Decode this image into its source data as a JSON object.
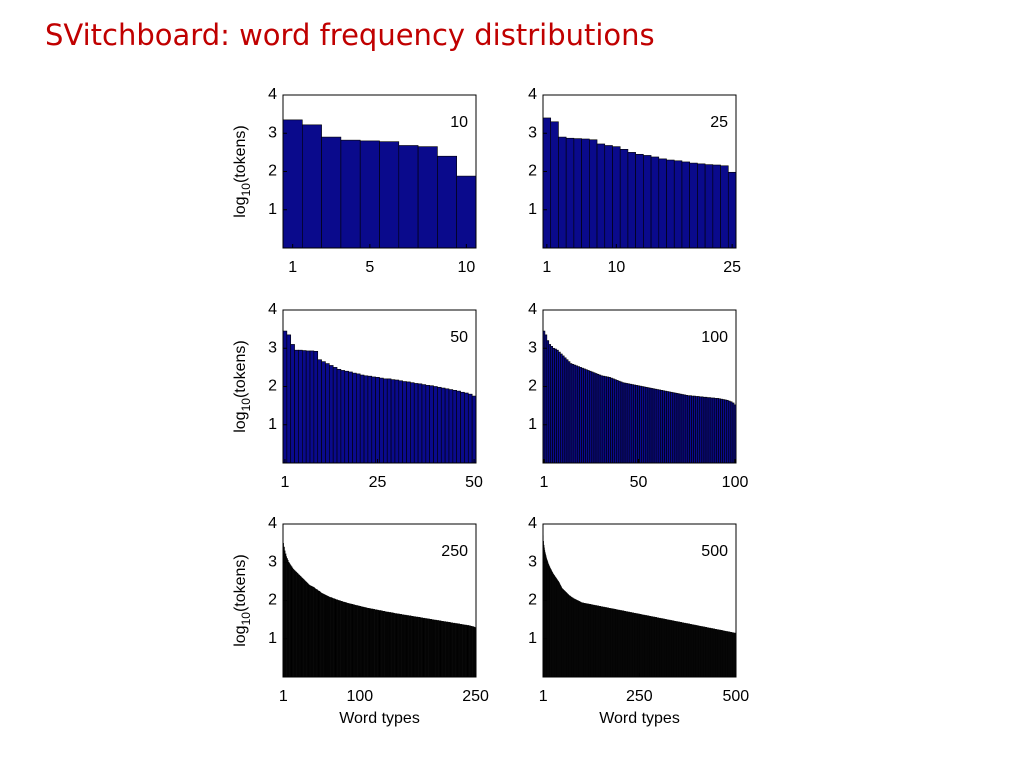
{
  "title": "SVitchboard: word frequency distributions",
  "chart_data": [
    {
      "type": "bar",
      "label": "10",
      "ylabel": {
        "base": "log",
        "sub": "10",
        "rest": "(tokens)"
      },
      "color": "#0a0a8c",
      "edgecolor": "#000000",
      "xlim": [
        0.5,
        10.5
      ],
      "xticks": [
        1,
        5,
        10
      ],
      "ylim": [
        0,
        4
      ],
      "yticks": [
        1,
        2,
        3,
        4
      ],
      "values": [
        3.35,
        3.22,
        2.9,
        2.82,
        2.8,
        2.78,
        2.68,
        2.65,
        2.4,
        1.88
      ]
    },
    {
      "type": "bar",
      "label": "25",
      "color": "#0a0a8c",
      "edgecolor": "#000000",
      "xlim": [
        0.5,
        25.5
      ],
      "xticks": [
        1,
        10,
        25
      ],
      "ylim": [
        0,
        4
      ],
      "yticks": [
        1,
        2,
        3,
        4
      ],
      "values": [
        3.4,
        3.3,
        2.9,
        2.87,
        2.86,
        2.85,
        2.83,
        2.72,
        2.68,
        2.65,
        2.58,
        2.5,
        2.45,
        2.42,
        2.38,
        2.33,
        2.3,
        2.28,
        2.25,
        2.22,
        2.2,
        2.18,
        2.17,
        2.15,
        1.98
      ]
    },
    {
      "type": "bar",
      "label": "50",
      "ylabel": {
        "base": "log",
        "sub": "10",
        "rest": "(tokens)"
      },
      "color": "#0a0a8c",
      "edgecolor": "#000000",
      "xlim": [
        0.5,
        50.5
      ],
      "xticks": [
        1,
        25,
        50
      ],
      "ylim": [
        0,
        4
      ],
      "yticks": [
        1,
        2,
        3,
        4
      ],
      "values": [
        3.45,
        3.35,
        3.1,
        2.95,
        2.95,
        2.94,
        2.93,
        2.93,
        2.92,
        2.7,
        2.65,
        2.6,
        2.55,
        2.5,
        2.45,
        2.42,
        2.4,
        2.38,
        2.35,
        2.33,
        2.3,
        2.28,
        2.27,
        2.25,
        2.24,
        2.22,
        2.2,
        2.2,
        2.18,
        2.17,
        2.15,
        2.13,
        2.12,
        2.1,
        2.08,
        2.07,
        2.05,
        2.03,
        2.02,
        2.0,
        1.98,
        1.96,
        1.94,
        1.92,
        1.9,
        1.88,
        1.85,
        1.83,
        1.8,
        1.75
      ]
    },
    {
      "type": "bar",
      "label": "100",
      "color": "#0a0a8c",
      "edgecolor": "#000000",
      "xlim": [
        0.5,
        100.5
      ],
      "xticks": [
        1,
        50,
        100
      ],
      "ylim": [
        0,
        4
      ],
      "yticks": [
        1,
        2,
        3,
        4
      ],
      "values": [
        3.45,
        3.35,
        3.2,
        3.1,
        3.05,
        3.0,
        2.98,
        2.95,
        2.9,
        2.85,
        2.8,
        2.75,
        2.7,
        2.65,
        2.6,
        2.58,
        2.56,
        2.54,
        2.52,
        2.5,
        2.48,
        2.46,
        2.44,
        2.42,
        2.4,
        2.38,
        2.36,
        2.34,
        2.32,
        2.3,
        2.28,
        2.27,
        2.26,
        2.25,
        2.24,
        2.22,
        2.2,
        2.18,
        2.16,
        2.14,
        2.12,
        2.1,
        2.09,
        2.08,
        2.07,
        2.06,
        2.05,
        2.04,
        2.03,
        2.02,
        2.01,
        2.0,
        1.99,
        1.98,
        1.97,
        1.96,
        1.95,
        1.94,
        1.93,
        1.92,
        1.91,
        1.9,
        1.89,
        1.88,
        1.87,
        1.86,
        1.85,
        1.84,
        1.83,
        1.82,
        1.81,
        1.8,
        1.79,
        1.78,
        1.77,
        1.76,
        1.76,
        1.75,
        1.75,
        1.74,
        1.74,
        1.73,
        1.73,
        1.72,
        1.72,
        1.71,
        1.71,
        1.7,
        1.7,
        1.69,
        1.69,
        1.68,
        1.67,
        1.66,
        1.65,
        1.64,
        1.62,
        1.6,
        1.57,
        1.52
      ]
    },
    {
      "type": "bar",
      "label": "250",
      "ylabel": {
        "base": "log",
        "sub": "10",
        "rest": "(tokens)"
      },
      "xlabel": "Word types",
      "color": "#000000",
      "xlim": [
        0.5,
        250.5
      ],
      "xticks": [
        1,
        100,
        250
      ],
      "ylim": [
        0,
        4
      ],
      "yticks": [
        1,
        2,
        3,
        4
      ],
      "values": [
        3.5,
        3.4,
        3.3,
        3.22,
        3.15,
        3.1,
        3.05,
        3.0,
        2.97,
        2.94,
        2.91,
        2.88,
        2.85,
        2.82,
        2.8,
        2.78,
        2.76,
        2.74,
        2.72,
        2.7,
        2.68,
        2.66,
        2.64,
        2.62,
        2.6,
        2.58,
        2.56,
        2.54,
        2.52,
        2.5,
        2.48,
        2.46,
        2.44,
        2.42,
        2.4,
        2.39,
        2.38,
        2.37,
        2.36,
        2.35,
        2.34,
        2.32,
        2.3,
        2.29,
        2.28,
        2.26,
        2.25,
        2.24,
        2.22,
        2.2,
        2.19,
        2.18,
        2.17,
        2.16,
        2.15,
        2.14,
        2.13,
        2.12,
        2.11,
        2.1,
        2.09,
        2.08,
        2.08,
        2.07,
        2.06,
        2.05,
        2.05,
        2.04,
        2.03,
        2.02,
        2.02,
        2.01,
        2.0,
        2.0,
        1.99,
        1.98,
        1.98,
        1.97,
        1.96,
        1.96,
        1.95,
        1.95,
        1.94,
        1.93,
        1.93,
        1.92,
        1.92,
        1.91,
        1.91,
        1.9,
        1.9,
        1.89,
        1.89,
        1.88,
        1.88,
        1.87,
        1.87,
        1.86,
        1.86,
        1.85,
        1.85,
        1.84,
        1.84,
        1.83,
        1.83,
        1.82,
        1.82,
        1.81,
        1.81,
        1.8,
        1.8,
        1.8,
        1.79,
        1.79,
        1.78,
        1.78,
        1.78,
        1.77,
        1.77,
        1.76,
        1.76,
        1.76,
        1.75,
        1.75,
        1.74,
        1.74,
        1.74,
        1.73,
        1.73,
        1.72,
        1.72,
        1.72,
        1.71,
        1.71,
        1.7,
        1.7,
        1.7,
        1.69,
        1.69,
        1.69,
        1.68,
        1.68,
        1.68,
        1.67,
        1.67,
        1.66,
        1.66,
        1.66,
        1.65,
        1.65,
        1.65,
        1.64,
        1.64,
        1.64,
        1.63,
        1.63,
        1.63,
        1.62,
        1.62,
        1.62,
        1.61,
        1.61,
        1.61,
        1.6,
        1.6,
        1.6,
        1.59,
        1.59,
        1.59,
        1.58,
        1.58,
        1.58,
        1.57,
        1.57,
        1.57,
        1.56,
        1.56,
        1.56,
        1.55,
        1.55,
        1.55,
        1.54,
        1.54,
        1.54,
        1.53,
        1.53,
        1.53,
        1.52,
        1.52,
        1.52,
        1.51,
        1.51,
        1.51,
        1.5,
        1.5,
        1.5,
        1.49,
        1.49,
        1.49,
        1.48,
        1.48,
        1.48,
        1.47,
        1.47,
        1.47,
        1.46,
        1.46,
        1.46,
        1.45,
        1.45,
        1.45,
        1.44,
        1.44,
        1.44,
        1.43,
        1.43,
        1.43,
        1.42,
        1.42,
        1.42,
        1.41,
        1.41,
        1.41,
        1.4,
        1.4,
        1.4,
        1.39,
        1.39,
        1.39,
        1.38,
        1.38,
        1.38,
        1.37,
        1.37,
        1.37,
        1.36,
        1.36,
        1.36,
        1.35,
        1.35,
        1.35,
        1.34,
        1.34,
        1.33,
        1.33,
        1.32,
        1.32,
        1.31,
        1.3,
        1.28
      ]
    },
    {
      "type": "bar",
      "label": "500",
      "xlabel": "Word types",
      "color": "#000000",
      "xlim": [
        0.5,
        500.5
      ],
      "xticks": [
        1,
        250,
        500
      ],
      "ylim": [
        0,
        4
      ],
      "yticks": [
        1,
        2,
        3,
        4
      ],
      "values": [
        3.7,
        3.55,
        3.45,
        3.38,
        3.32,
        3.27,
        3.22,
        3.18,
        3.14,
        3.1,
        3.07,
        3.04,
        3.01,
        2.98,
        2.95,
        2.93,
        2.9,
        2.88,
        2.86,
        2.84,
        2.82,
        2.8,
        2.78,
        2.76,
        2.74,
        2.72,
        2.7,
        2.69,
        2.67,
        2.66,
        2.64,
        2.63,
        2.61,
        2.6,
        2.58,
        2.57,
        2.55,
        2.54,
        2.52,
        2.51,
        2.5,
        2.48,
        2.46,
        2.44,
        2.42,
        2.4,
        2.38,
        2.36,
        2.34,
        2.32,
        2.31,
        2.3,
        2.29,
        2.28,
        2.27,
        2.26,
        2.25,
        2.24,
        2.23,
        2.22,
        2.21,
        2.2,
        2.19,
        2.18,
        2.17,
        2.16,
        2.15,
        2.14,
        2.13,
        2.12,
        2.12,
        2.11,
        2.1,
        2.09,
        2.09,
        2.08,
        2.07,
        2.07,
        2.06,
        2.05,
        2.05,
        2.04,
        2.04,
        2.03,
        2.03,
        2.02,
        2.02,
        2.01,
        2.01,
        2.0,
        2.0,
        1.99,
        1.99,
        1.98,
        1.98,
        1.97,
        1.97,
        1.96,
        1.96,
        1.95,
        1.94,
        1.94,
        1.94,
        1.94,
        1.94,
        1.93,
        1.93,
        1.93,
        1.93,
        1.93,
        1.92,
        1.92,
        1.92,
        1.92,
        1.92,
        1.91,
        1.91,
        1.91,
        1.91,
        1.91,
        1.9,
        1.9,
        1.9,
        1.9,
        1.9,
        1.89,
        1.89,
        1.89,
        1.89,
        1.89,
        1.88,
        1.88,
        1.88,
        1.88,
        1.88,
        1.87,
        1.87,
        1.87,
        1.87,
        1.87,
        1.86,
        1.86,
        1.86,
        1.86,
        1.86,
        1.85,
        1.85,
        1.85,
        1.85,
        1.85,
        1.84,
        1.84,
        1.84,
        1.84,
        1.84,
        1.83,
        1.83,
        1.83,
        1.83,
        1.83,
        1.82,
        1.82,
        1.82,
        1.82,
        1.82,
        1.81,
        1.81,
        1.81,
        1.81,
        1.81,
        1.8,
        1.8,
        1.8,
        1.8,
        1.8,
        1.79,
        1.79,
        1.79,
        1.79,
        1.79,
        1.78,
        1.78,
        1.78,
        1.78,
        1.78,
        1.77,
        1.77,
        1.77,
        1.77,
        1.77,
        1.76,
        1.76,
        1.76,
        1.76,
        1.76,
        1.75,
        1.75,
        1.75,
        1.75,
        1.75,
        1.74,
        1.74,
        1.74,
        1.74,
        1.74,
        1.73,
        1.73,
        1.73,
        1.73,
        1.73,
        1.72,
        1.72,
        1.72,
        1.72,
        1.72,
        1.71,
        1.71,
        1.71,
        1.71,
        1.71,
        1.7,
        1.7,
        1.7,
        1.7,
        1.7,
        1.69,
        1.69,
        1.69,
        1.69,
        1.69,
        1.68,
        1.68,
        1.68,
        1.68,
        1.68,
        1.67,
        1.67,
        1.67,
        1.67,
        1.67,
        1.66,
        1.66,
        1.66,
        1.66,
        1.66,
        1.65,
        1.65,
        1.65,
        1.65,
        1.65,
        1.64,
        1.64,
        1.64,
        1.64,
        1.64,
        1.63,
        1.63,
        1.63,
        1.63,
        1.63,
        1.62,
        1.62,
        1.62,
        1.62,
        1.62,
        1.61,
        1.61,
        1.61,
        1.61,
        1.61,
        1.6,
        1.6,
        1.6,
        1.6,
        1.6,
        1.59,
        1.59,
        1.59,
        1.59,
        1.59,
        1.58,
        1.58,
        1.58,
        1.58,
        1.58,
        1.57,
        1.57,
        1.57,
        1.57,
        1.57,
        1.56,
        1.56,
        1.56,
        1.56,
        1.56,
        1.55,
        1.55,
        1.55,
        1.55,
        1.55,
        1.54,
        1.54,
        1.54,
        1.54,
        1.54,
        1.53,
        1.53,
        1.53,
        1.53,
        1.53,
        1.52,
        1.52,
        1.52,
        1.52,
        1.52,
        1.51,
        1.51,
        1.51,
        1.51,
        1.51,
        1.5,
        1.5,
        1.5,
        1.5,
        1.5,
        1.49,
        1.49,
        1.49,
        1.49,
        1.49,
        1.48,
        1.48,
        1.48,
        1.48,
        1.48,
        1.47,
        1.47,
        1.47,
        1.47,
        1.47,
        1.46,
        1.46,
        1.46,
        1.46,
        1.46,
        1.45,
        1.45,
        1.45,
        1.45,
        1.45,
        1.44,
        1.44,
        1.44,
        1.44,
        1.44,
        1.43,
        1.43,
        1.43,
        1.43,
        1.43,
        1.42,
        1.42,
        1.42,
        1.42,
        1.42,
        1.41,
        1.41,
        1.41,
        1.41,
        1.41,
        1.4,
        1.4,
        1.4,
        1.4,
        1.4,
        1.39,
        1.39,
        1.39,
        1.39,
        1.39,
        1.38,
        1.38,
        1.38,
        1.38,
        1.38,
        1.37,
        1.37,
        1.37,
        1.37,
        1.37,
        1.36,
        1.36,
        1.36,
        1.36,
        1.36,
        1.35,
        1.35,
        1.35,
        1.35,
        1.35,
        1.34,
        1.34,
        1.34,
        1.34,
        1.34,
        1.33,
        1.33,
        1.33,
        1.33,
        1.33,
        1.32,
        1.32,
        1.32,
        1.32,
        1.32,
        1.31,
        1.31,
        1.31,
        1.31,
        1.31,
        1.3,
        1.3,
        1.3,
        1.3,
        1.3,
        1.29,
        1.29,
        1.29,
        1.29,
        1.29,
        1.28,
        1.28,
        1.28,
        1.28,
        1.28,
        1.27,
        1.27,
        1.27,
        1.27,
        1.27,
        1.26,
        1.26,
        1.26,
        1.26,
        1.26,
        1.25,
        1.25,
        1.25,
        1.25,
        1.25,
        1.24,
        1.24,
        1.24,
        1.24,
        1.24,
        1.23,
        1.23,
        1.23,
        1.23,
        1.23,
        1.22,
        1.22,
        1.22,
        1.22,
        1.22,
        1.21,
        1.21,
        1.21,
        1.21,
        1.21,
        1.2,
        1.2,
        1.2,
        1.2,
        1.2,
        1.19,
        1.19,
        1.19,
        1.19,
        1.19,
        1.18,
        1.18,
        1.18,
        1.18,
        1.18,
        1.17,
        1.17,
        1.17,
        1.17,
        1.17,
        1.16,
        1.16,
        1.16,
        1.16,
        1.16,
        1.15,
        1.15,
        1.15,
        1.15,
        1.15
      ]
    }
  ]
}
